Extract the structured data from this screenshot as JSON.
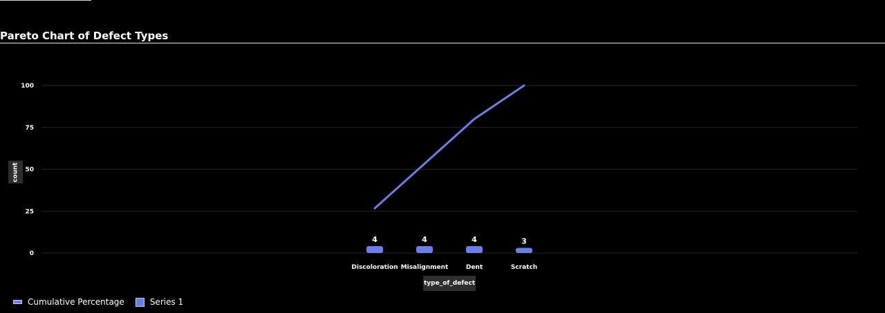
{
  "title": "Pareto Chart of Defect Types",
  "colors": {
    "series": "#6a7ee8",
    "grid": "#262626",
    "background": "#000000"
  },
  "chart_data": {
    "type": "bar",
    "title": "Pareto Chart of Defect Types",
    "xlabel": "type_of_defect",
    "ylabel": "count",
    "ylim": [
      0,
      100
    ],
    "yticks": [
      0,
      25,
      50,
      75,
      100
    ],
    "grid": true,
    "legend_position": "bottom-left",
    "categories": [
      "Discoloration",
      "Misalignment",
      "Dent",
      "Scratch"
    ],
    "series": [
      {
        "name": "Cumulative Percentage",
        "type": "line",
        "values": [
          26.7,
          53.3,
          80.0,
          100.0
        ]
      },
      {
        "name": "Series 1",
        "type": "bar",
        "values": [
          4,
          4,
          4,
          3
        ]
      }
    ]
  },
  "legend": {
    "items": [
      {
        "label": "Cumulative Percentage",
        "icon": "line-swatch-icon"
      },
      {
        "label": "Series 1",
        "icon": "box-swatch-icon"
      }
    ]
  }
}
